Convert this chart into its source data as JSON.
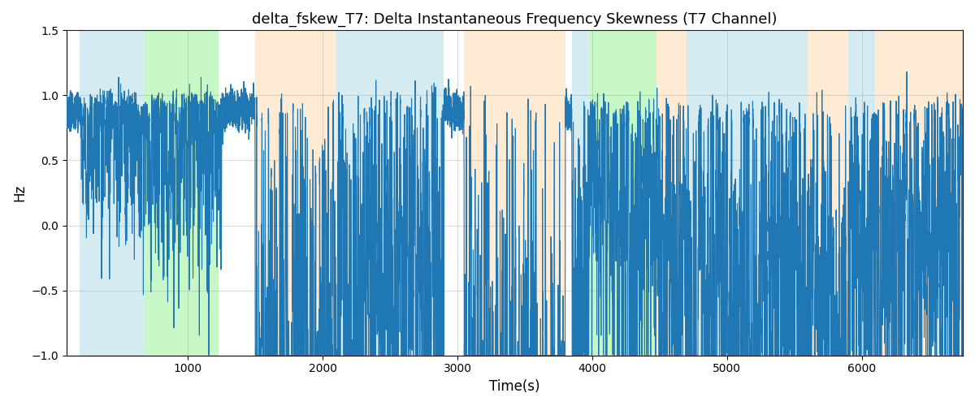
{
  "title": "delta_fskew_T7: Delta Instantaneous Frequency Skewness (T7 Channel)",
  "xlabel": "Time(s)",
  "ylabel": "Hz",
  "xlim": [
    100,
    6750
  ],
  "ylim": [
    -1.0,
    1.5
  ],
  "yticks": [
    -1.0,
    -0.5,
    0.0,
    0.5,
    1.0,
    1.5
  ],
  "xticks": [
    1000,
    2000,
    3000,
    4000,
    5000,
    6000
  ],
  "line_color": "#1f77b4",
  "line_width": 0.8,
  "figsize": [
    12.0,
    5.0
  ],
  "dpi": 100,
  "background_bands": [
    {
      "xmin": 200,
      "xmax": 680,
      "color": "#add8e6",
      "alpha": 0.5
    },
    {
      "xmin": 680,
      "xmax": 1230,
      "color": "#90ee90",
      "alpha": 0.5
    },
    {
      "xmin": 1500,
      "xmax": 2100,
      "color": "#ffd8a8",
      "alpha": 0.5
    },
    {
      "xmin": 2100,
      "xmax": 2900,
      "color": "#add8e6",
      "alpha": 0.5
    },
    {
      "xmin": 3050,
      "xmax": 3800,
      "color": "#ffd8a8",
      "alpha": 0.5
    },
    {
      "xmin": 3850,
      "xmax": 3980,
      "color": "#add8e6",
      "alpha": 0.5
    },
    {
      "xmin": 3980,
      "xmax": 4480,
      "color": "#90ee90",
      "alpha": 0.5
    },
    {
      "xmin": 4480,
      "xmax": 4700,
      "color": "#ffd8a8",
      "alpha": 0.5
    },
    {
      "xmin": 4700,
      "xmax": 5600,
      "color": "#add8e6",
      "alpha": 0.5
    },
    {
      "xmin": 5600,
      "xmax": 5900,
      "color": "#ffd8a8",
      "alpha": 0.5
    },
    {
      "xmin": 5900,
      "xmax": 6100,
      "color": "#add8e6",
      "alpha": 0.5
    },
    {
      "xmin": 6100,
      "xmax": 6750,
      "color": "#ffd8a8",
      "alpha": 0.5
    }
  ]
}
